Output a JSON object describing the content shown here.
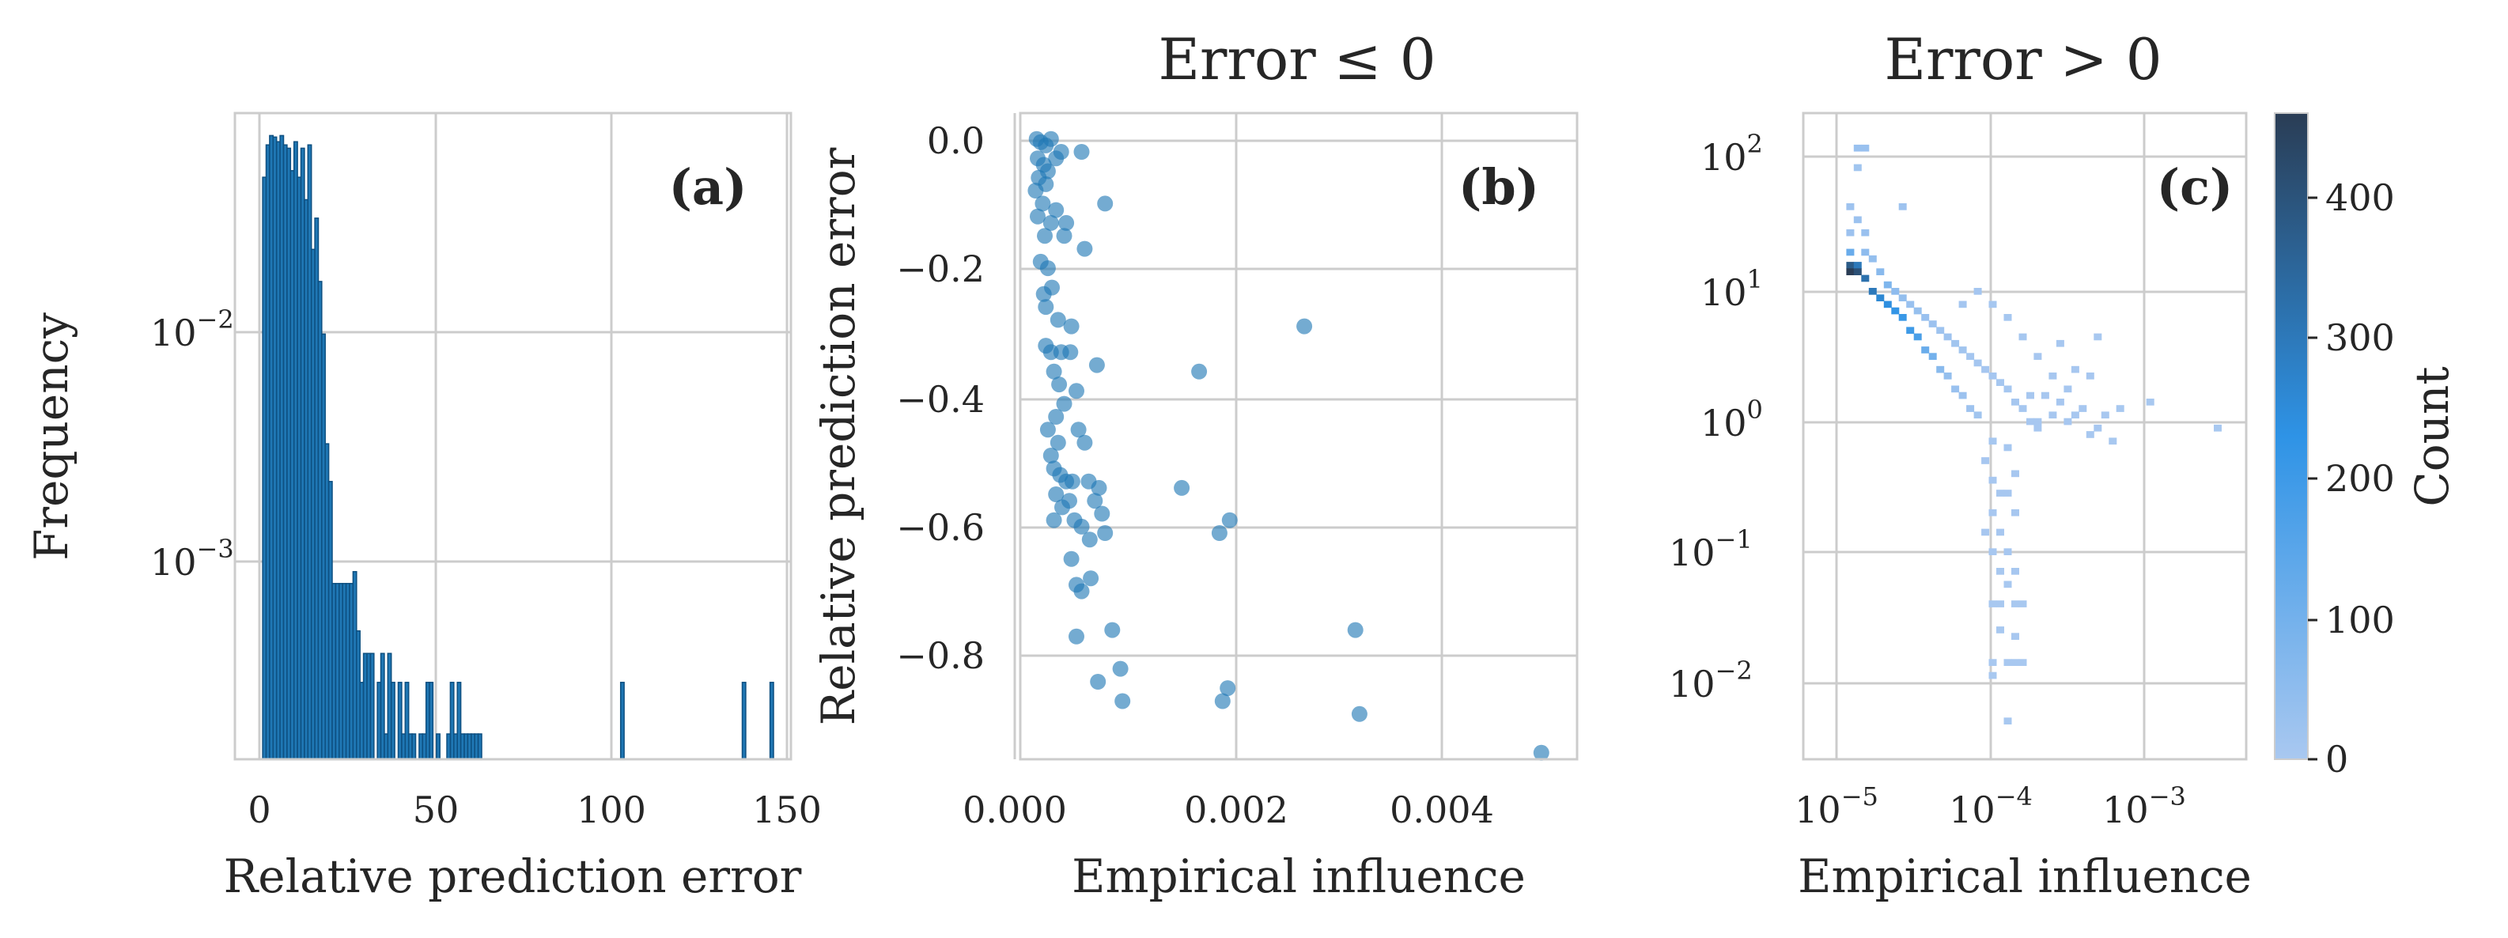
{
  "panels": {
    "a": {
      "label": "(a)",
      "title": "",
      "xlabel": "Relative prediction error",
      "ylabel": "Frequency",
      "x_ticks": [
        "0",
        "50",
        "100",
        "150"
      ],
      "y_ticks": [
        {
          "base": "10",
          "exp": "−2"
        },
        {
          "base": "10",
          "exp": "−3"
        }
      ]
    },
    "b": {
      "label": "(b)",
      "title": "Error ≤ 0",
      "xlabel": "Empirical influence",
      "ylabel": "Relative prediction error",
      "x_ticks": [
        "0.000",
        "0.002",
        "0.004"
      ],
      "y_ticks": [
        "0.0",
        "−0.2",
        "−0.4",
        "−0.6",
        "−0.8"
      ]
    },
    "c": {
      "label": "(c)",
      "title": "Error > 0",
      "xlabel": "Empirical influence",
      "ylabel": "",
      "x_ticks": [
        {
          "base": "10",
          "exp": "−5"
        },
        {
          "base": "10",
          "exp": "−4"
        },
        {
          "base": "10",
          "exp": "−3"
        }
      ],
      "y_ticks": [
        {
          "base": "10",
          "exp": "2"
        },
        {
          "base": "10",
          "exp": "1"
        },
        {
          "base": "10",
          "exp": "0"
        },
        {
          "base": "10",
          "exp": "−1"
        },
        {
          "base": "10",
          "exp": "−2"
        }
      ]
    },
    "colorbar": {
      "label": "Count",
      "ticks": [
        "0",
        "100",
        "200",
        "300",
        "400"
      ]
    }
  },
  "colors": {
    "bar_fill": "#1f77b4",
    "bar_edge": "#0d4f80",
    "point": "#1f77b4",
    "grid": "#cccccc",
    "axis": "#cccccc",
    "heat_low": "#a9c8f0",
    "heat_mid": "#2e93e6",
    "heat_high": "#2a3d55"
  },
  "chart_data": [
    {
      "type": "bar",
      "subtype": "histogram",
      "panel": "a",
      "xlabel": "Relative prediction error",
      "ylabel": "Frequency",
      "xlim": [
        -8,
        152
      ],
      "y_scale": "log",
      "ylim": [
        0.00014,
        0.085
      ],
      "bin_width": 1.0,
      "bins": [
        [
          0,
          0.045
        ],
        [
          1,
          0.062
        ],
        [
          2,
          0.068
        ],
        [
          3,
          0.067
        ],
        [
          4,
          0.064
        ],
        [
          5,
          0.068
        ],
        [
          6,
          0.062
        ],
        [
          7,
          0.06
        ],
        [
          8,
          0.048
        ],
        [
          9,
          0.064
        ],
        [
          10,
          0.045
        ],
        [
          11,
          0.06
        ],
        [
          12,
          0.036
        ],
        [
          13,
          0.062
        ],
        [
          14,
          0.022
        ],
        [
          15,
          0.03
        ],
        [
          16,
          0.016
        ],
        [
          17,
          0.0095
        ],
        [
          18,
          0.0032
        ],
        [
          19,
          0.0022
        ],
        [
          20,
          0.0008
        ],
        [
          21,
          0.0008
        ],
        [
          22,
          0.0008
        ],
        [
          23,
          0.0008
        ],
        [
          24,
          0.0008
        ],
        [
          25,
          0.0008
        ],
        [
          26,
          0.0009
        ],
        [
          27,
          0.0005
        ],
        [
          28,
          0.0003
        ],
        [
          29,
          0.0004
        ],
        [
          30,
          0.0004
        ],
        [
          31,
          0.0004
        ],
        [
          33,
          0.0003
        ],
        [
          34,
          0.0004
        ],
        [
          36,
          0.0004
        ],
        [
          37,
          0.0003
        ],
        [
          39,
          0.0003
        ],
        [
          41,
          0.0003
        ],
        [
          47,
          0.0003
        ],
        [
          48,
          0.0003
        ],
        [
          54,
          0.0003
        ],
        [
          56,
          0.0003
        ],
        [
          103,
          0.0003
        ],
        [
          138,
          0.0003
        ],
        [
          146,
          0.0003
        ],
        [
          35,
          0.00018
        ],
        [
          40,
          0.00018
        ],
        [
          42,
          0.00018
        ],
        [
          43,
          0.00018
        ],
        [
          45,
          0.00018
        ],
        [
          46,
          0.00018
        ],
        [
          50,
          0.00018
        ],
        [
          53,
          0.00018
        ],
        [
          55,
          0.00018
        ],
        [
          57,
          0.00018
        ],
        [
          58,
          0.00018
        ],
        [
          59,
          0.00018
        ],
        [
          60,
          0.00018
        ],
        [
          61,
          0.00018
        ],
        [
          62,
          0.00018
        ]
      ],
      "grid": true
    },
    {
      "type": "scatter",
      "panel": "b",
      "title": "Error ≤ 0",
      "xlabel": "Empirical influence",
      "ylabel": "Relative prediction error",
      "xlim": [
        -5e-05,
        0.0054
      ],
      "ylim": [
        -0.96,
        0.04
      ],
      "points": [
        [
          0.00011,
          0.0
        ],
        [
          0.00015,
          -0.005
        ],
        [
          0.0002,
          -0.01
        ],
        [
          0.00025,
          0.0
        ],
        [
          0.00012,
          -0.03
        ],
        [
          0.00018,
          -0.04
        ],
        [
          0.0003,
          -0.03
        ],
        [
          0.00035,
          -0.02
        ],
        [
          0.00013,
          -0.06
        ],
        [
          0.0002,
          -0.07
        ],
        [
          0.00022,
          -0.05
        ],
        [
          0.0001,
          -0.08
        ],
        [
          0.00017,
          -0.1
        ],
        [
          0.0003,
          -0.11
        ],
        [
          0.00012,
          -0.12
        ],
        [
          0.00025,
          -0.13
        ],
        [
          0.00019,
          -0.15
        ],
        [
          0.00038,
          -0.15
        ],
        [
          0.00015,
          -0.19
        ],
        [
          0.00022,
          -0.2
        ],
        [
          0.00018,
          -0.24
        ],
        [
          0.0002,
          -0.26
        ],
        [
          0.00026,
          -0.23
        ],
        [
          0.00032,
          -0.28
        ],
        [
          0.00045,
          -0.29
        ],
        [
          0.00055,
          -0.02
        ],
        [
          0.00078,
          -0.1
        ],
        [
          0.0004,
          -0.13
        ],
        [
          0.00058,
          -0.17
        ],
        [
          0.0002,
          -0.32
        ],
        [
          0.00025,
          -0.33
        ],
        [
          0.00035,
          -0.33
        ],
        [
          0.00028,
          -0.36
        ],
        [
          0.00033,
          -0.38
        ],
        [
          0.00038,
          -0.41
        ],
        [
          0.00044,
          -0.33
        ],
        [
          0.0005,
          -0.39
        ],
        [
          0.0007,
          -0.35
        ],
        [
          0.0003,
          -0.43
        ],
        [
          0.00022,
          -0.45
        ],
        [
          0.00025,
          -0.49
        ],
        [
          0.00032,
          -0.47
        ],
        [
          0.00028,
          -0.51
        ],
        [
          0.00034,
          -0.52
        ],
        [
          0.0004,
          -0.53
        ],
        [
          0.00046,
          -0.53
        ],
        [
          0.00052,
          -0.45
        ],
        [
          0.00058,
          -0.47
        ],
        [
          0.00062,
          -0.53
        ],
        [
          0.00068,
          -0.56
        ],
        [
          0.00072,
          -0.54
        ],
        [
          0.0003,
          -0.55
        ],
        [
          0.00036,
          -0.57
        ],
        [
          0.00043,
          -0.56
        ],
        [
          0.00028,
          -0.59
        ],
        [
          0.00048,
          -0.59
        ],
        [
          0.00055,
          -0.6
        ],
        [
          0.00063,
          -0.62
        ],
        [
          0.00075,
          -0.58
        ],
        [
          0.00078,
          -0.61
        ],
        [
          0.00045,
          -0.65
        ],
        [
          0.0005,
          -0.69
        ],
        [
          0.00055,
          -0.7
        ],
        [
          0.00064,
          -0.68
        ],
        [
          0.0005,
          -0.77
        ],
        [
          0.00085,
          -0.76
        ],
        [
          0.00071,
          -0.84
        ],
        [
          0.00093,
          -0.82
        ],
        [
          0.00095,
          -0.87
        ],
        [
          0.0017,
          -0.36
        ],
        [
          0.00273,
          -0.29
        ],
        [
          0.00153,
          -0.54
        ],
        [
          0.002,
          -0.59
        ],
        [
          0.0019,
          -0.61
        ],
        [
          0.00198,
          -0.85
        ],
        [
          0.00193,
          -0.87
        ],
        [
          0.00323,
          -0.76
        ],
        [
          0.00327,
          -0.89
        ],
        [
          0.00505,
          -0.95
        ]
      ],
      "grid": true
    },
    {
      "type": "heatmap",
      "panel": "c",
      "title": "Error > 0",
      "xlabel": "Empirical influence",
      "colorbar_label": "Count",
      "x_scale": "log",
      "y_scale": "log",
      "xlim": [
        5.8e-06,
        0.0052
      ],
      "ylim": [
        0.0024,
        220
      ],
      "bin_log_size": 0.05,
      "clim": [
        0,
        460
      ],
      "cells": [
        [
          -4.9,
          2.05,
          30
        ],
        [
          -4.85,
          2.05,
          30
        ],
        [
          -4.9,
          1.9,
          15
        ],
        [
          -4.95,
          1.6,
          20
        ],
        [
          -4.9,
          1.5,
          25
        ],
        [
          -4.95,
          1.4,
          25
        ],
        [
          -4.85,
          1.4,
          30
        ],
        [
          -4.6,
          1.6,
          20
        ],
        [
          -4.95,
          1.25,
          120
        ],
        [
          -4.95,
          1.15,
          380
        ],
        [
          -4.95,
          1.1,
          460
        ],
        [
          -4.9,
          1.15,
          300
        ],
        [
          -4.9,
          1.1,
          410
        ],
        [
          -4.85,
          1.05,
          320
        ],
        [
          -4.8,
          0.95,
          300
        ],
        [
          -4.75,
          0.9,
          260
        ],
        [
          -4.7,
          0.85,
          240
        ],
        [
          -4.65,
          0.8,
          220
        ],
        [
          -4.6,
          0.75,
          210
        ],
        [
          -4.55,
          0.65,
          200
        ],
        [
          -4.5,
          0.6,
          180
        ],
        [
          -4.45,
          0.5,
          120
        ],
        [
          -4.4,
          0.45,
          100
        ],
        [
          -4.35,
          0.35,
          60
        ],
        [
          -4.3,
          0.3,
          40
        ],
        [
          -4.25,
          0.2,
          30
        ],
        [
          -4.2,
          0.15,
          25
        ],
        [
          -4.15,
          0.05,
          20
        ],
        [
          -4.1,
          0.0,
          15
        ],
        [
          -4.85,
          1.25,
          50
        ],
        [
          -4.8,
          1.2,
          40
        ],
        [
          -4.75,
          1.1,
          60
        ],
        [
          -4.7,
          1.0,
          80
        ],
        [
          -4.65,
          0.95,
          50
        ],
        [
          -4.6,
          0.9,
          40
        ],
        [
          -4.55,
          0.85,
          30
        ],
        [
          -4.5,
          0.8,
          35
        ],
        [
          -4.45,
          0.75,
          30
        ],
        [
          -4.4,
          0.7,
          25
        ],
        [
          -4.35,
          0.65,
          20
        ],
        [
          -4.3,
          0.6,
          20
        ],
        [
          -4.25,
          0.55,
          15
        ],
        [
          -4.2,
          0.5,
          15
        ],
        [
          -4.15,
          0.45,
          10
        ],
        [
          -4.1,
          0.4,
          10
        ],
        [
          -4.05,
          0.35,
          8
        ],
        [
          -4.0,
          0.3,
          8
        ],
        [
          -3.95,
          0.25,
          6
        ],
        [
          -3.9,
          0.2,
          6
        ],
        [
          -3.85,
          0.1,
          5
        ],
        [
          -3.8,
          0.05,
          5
        ],
        [
          -3.75,
          -0.05,
          4
        ],
        [
          -3.7,
          -0.1,
          4
        ],
        [
          -4.2,
          0.85,
          10
        ],
        [
          -4.1,
          0.95,
          8
        ],
        [
          -4.0,
          0.85,
          6
        ],
        [
          -3.9,
          0.75,
          5
        ],
        [
          -3.8,
          0.6,
          5
        ],
        [
          -3.7,
          0.45,
          4
        ],
        [
          -3.6,
          0.3,
          4
        ],
        [
          -3.5,
          0.2,
          3
        ],
        [
          -3.4,
          0.05,
          3
        ],
        [
          -3.3,
          -0.1,
          3
        ],
        [
          -3.2,
          -0.2,
          2
        ],
        [
          -3.55,
          0.55,
          3
        ],
        [
          -3.45,
          0.0,
          3
        ],
        [
          -3.35,
          -0.15,
          2
        ],
        [
          -3.6,
          0.0,
          3
        ],
        [
          -3.7,
          -0.05,
          3
        ],
        [
          -3.75,
          0.15,
          4
        ],
        [
          -3.65,
          0.15,
          4
        ],
        [
          -3.55,
          0.1,
          3
        ],
        [
          -3.5,
          -0.05,
          3
        ],
        [
          -3.25,
          0.0,
          2
        ],
        [
          -3.15,
          0.05,
          2
        ],
        [
          -2.95,
          0.1,
          2
        ],
        [
          -2.5,
          -0.1,
          1
        ],
        [
          -3.35,
          0.3,
          3
        ],
        [
          -3.45,
          0.35,
          3
        ],
        [
          -3.3,
          0.6,
          2
        ],
        [
          -4.05,
          -0.35,
          4
        ],
        [
          -4.0,
          -0.5,
          4
        ],
        [
          -3.95,
          -0.6,
          3
        ],
        [
          -4.0,
          -0.75,
          3
        ],
        [
          -3.95,
          -0.9,
          3
        ],
        [
          -4.0,
          -1.05,
          3
        ],
        [
          -3.95,
          -1.2,
          2
        ],
        [
          -3.9,
          -1.3,
          2
        ],
        [
          -4.0,
          -1.45,
          2
        ],
        [
          -3.95,
          -1.45,
          2
        ],
        [
          -3.85,
          -1.45,
          2
        ],
        [
          -3.8,
          -1.45,
          2
        ],
        [
          -3.95,
          -1.65,
          2
        ],
        [
          -3.85,
          -1.7,
          2
        ],
        [
          -4.0,
          -1.9,
          2
        ],
        [
          -3.9,
          -1.9,
          2
        ],
        [
          -3.85,
          -1.9,
          2
        ],
        [
          -3.8,
          -1.9,
          2
        ],
        [
          -4.0,
          -2.0,
          2
        ],
        [
          -3.9,
          -2.35,
          1
        ],
        [
          -4.0,
          -0.2,
          5
        ],
        [
          -3.9,
          -0.25,
          5
        ],
        [
          -3.85,
          -0.45,
          4
        ],
        [
          -3.9,
          -0.6,
          4
        ],
        [
          -3.85,
          -0.75,
          4
        ],
        [
          -4.05,
          -0.9,
          3
        ],
        [
          -3.9,
          -1.05,
          3
        ],
        [
          -3.85,
          -1.2,
          3
        ]
      ],
      "grid": true
    }
  ]
}
